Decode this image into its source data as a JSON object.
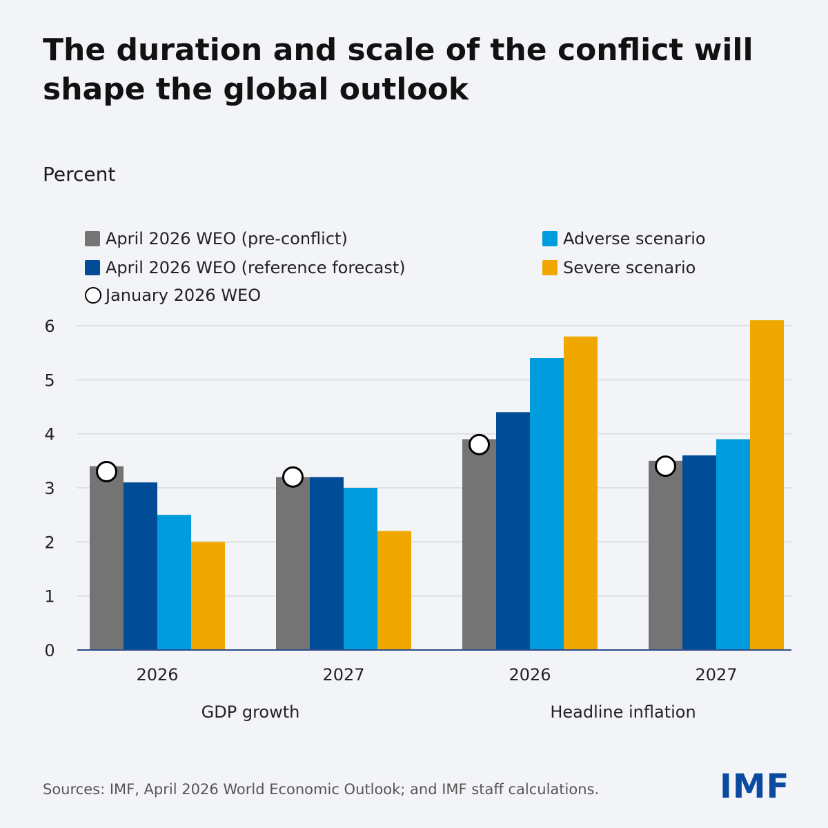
{
  "title": "The duration and scale of the conflict will shape the global outlook",
  "unit_label": "Percent",
  "source": "Sources: IMF, April 2026 World Economic Outlook; and IMF staff calculations.",
  "logo": "IMF",
  "chart_data": {
    "type": "bar",
    "title": "The duration and scale of the conflict will shape the global outlook",
    "ylabel": "Percent",
    "ylim": [
      0,
      6
    ],
    "yticks": [
      0,
      1,
      2,
      3,
      4,
      5,
      6
    ],
    "grid": true,
    "legend_position": "top",
    "categories": [
      "2026",
      "2027",
      "2026",
      "2027"
    ],
    "category_groups": [
      {
        "label": "GDP growth",
        "categories": [
          0,
          1
        ]
      },
      {
        "label": "Headline inflation",
        "categories": [
          2,
          3
        ]
      }
    ],
    "series": [
      {
        "name": "April 2026 WEO (pre-conflict)",
        "color": "#747474",
        "type": "bar",
        "values": [
          3.4,
          3.2,
          3.9,
          3.5
        ]
      },
      {
        "name": "April 2026 WEO (reference forecast)",
        "color": "#004c97",
        "type": "bar",
        "values": [
          3.1,
          3.2,
          4.4,
          3.6
        ]
      },
      {
        "name": "Adverse scenario",
        "color": "#009cde",
        "type": "bar",
        "values": [
          2.5,
          3.0,
          5.4,
          3.9
        ]
      },
      {
        "name": "Severe scenario",
        "color": "#f0a800",
        "type": "bar",
        "values": [
          2.0,
          2.2,
          5.8,
          6.1
        ]
      },
      {
        "name": "January 2026 WEO",
        "color": "#ffffff",
        "type": "marker",
        "values": [
          3.3,
          3.2,
          3.8,
          3.4
        ]
      }
    ]
  }
}
